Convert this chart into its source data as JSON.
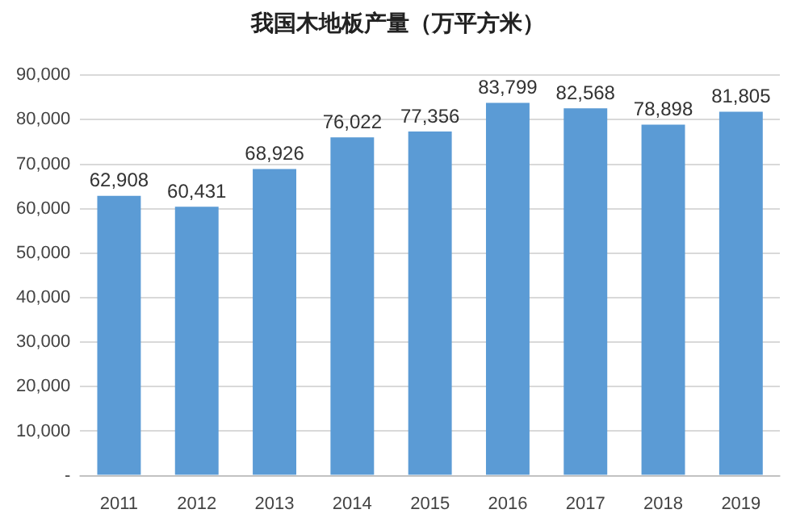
{
  "chart_data": {
    "type": "bar",
    "title": "我国木地板产量（万平方米）",
    "categories": [
      "2011",
      "2012",
      "2013",
      "2014",
      "2015",
      "2016",
      "2017",
      "2018",
      "2019"
    ],
    "values": [
      62908,
      60431,
      68926,
      76022,
      77356,
      83799,
      82568,
      78898,
      81805
    ],
    "value_labels": [
      "62,908",
      "60,431",
      "68,926",
      "76,022",
      "77,356",
      "83,799",
      "82,568",
      "78,898",
      "81,805"
    ],
    "color": "#5b9bd5",
    "ylim": [
      0,
      90000
    ],
    "yticks": [
      {
        "value": 0,
        "label": "-"
      },
      {
        "value": 10000,
        "label": "10,000"
      },
      {
        "value": 20000,
        "label": "20,000"
      },
      {
        "value": 30000,
        "label": "30,000"
      },
      {
        "value": 40000,
        "label": "40,000"
      },
      {
        "value": 50000,
        "label": "50,000"
      },
      {
        "value": 60000,
        "label": "60,000"
      },
      {
        "value": 70000,
        "label": "70,000"
      },
      {
        "value": 80000,
        "label": "80,000"
      },
      {
        "value": 90000,
        "label": "90,000"
      }
    ],
    "grid": "y",
    "legend": false
  }
}
